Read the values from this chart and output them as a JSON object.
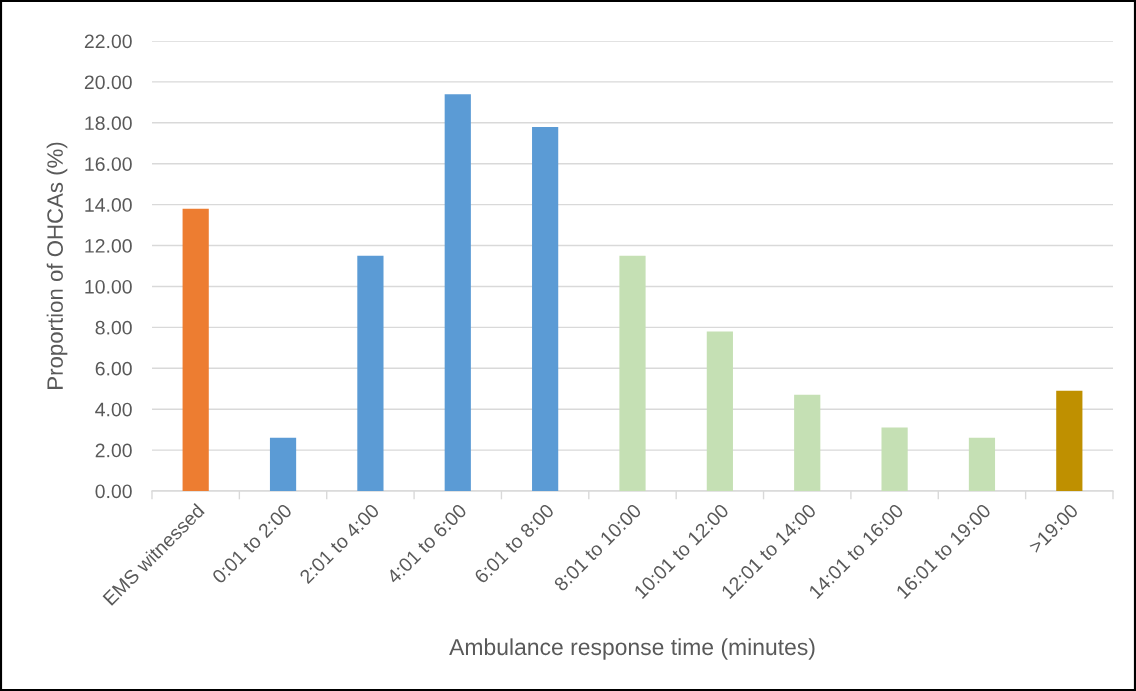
{
  "chart_data": {
    "type": "bar",
    "categories": [
      "EMS witnessed",
      "0:01 to 2:00",
      "2:01 to 4:00",
      "4:01 to 6:00",
      "6:01 to 8:00",
      "8:01 to 10:00",
      "10:01 to 12:00",
      "12:01 to 14:00",
      "14:01 to 16:00",
      "16:01 to 19:00",
      ">19:00"
    ],
    "values": [
      13.8,
      2.6,
      11.5,
      19.4,
      17.8,
      11.5,
      7.8,
      4.7,
      3.1,
      2.6,
      4.9
    ],
    "colors": [
      "#ed7d31",
      "#5b9bd5",
      "#5b9bd5",
      "#5b9bd5",
      "#5b9bd5",
      "#c5e0b4",
      "#c5e0b4",
      "#c5e0b4",
      "#c5e0b4",
      "#c5e0b4",
      "#bf9000"
    ],
    "xlabel": "Ambulance response time (minutes)",
    "ylabel": "Proportion of OHCAs (%)",
    "ylim": [
      0,
      22
    ],
    "yticks": [
      {
        "value": 0,
        "label": "0.00"
      },
      {
        "value": 2,
        "label": "2.00"
      },
      {
        "value": 4,
        "label": "4.00"
      },
      {
        "value": 6,
        "label": "6.00"
      },
      {
        "value": 8,
        "label": "8.00"
      },
      {
        "value": 10,
        "label": "10.00"
      },
      {
        "value": 12,
        "label": "12.00"
      },
      {
        "value": 14,
        "label": "14.00"
      },
      {
        "value": 16,
        "label": "16.00"
      },
      {
        "value": 18,
        "label": "18.00"
      },
      {
        "value": 20,
        "label": "20.00"
      },
      {
        "value": 22,
        "label": "22.00"
      }
    ],
    "grid": "y"
  }
}
